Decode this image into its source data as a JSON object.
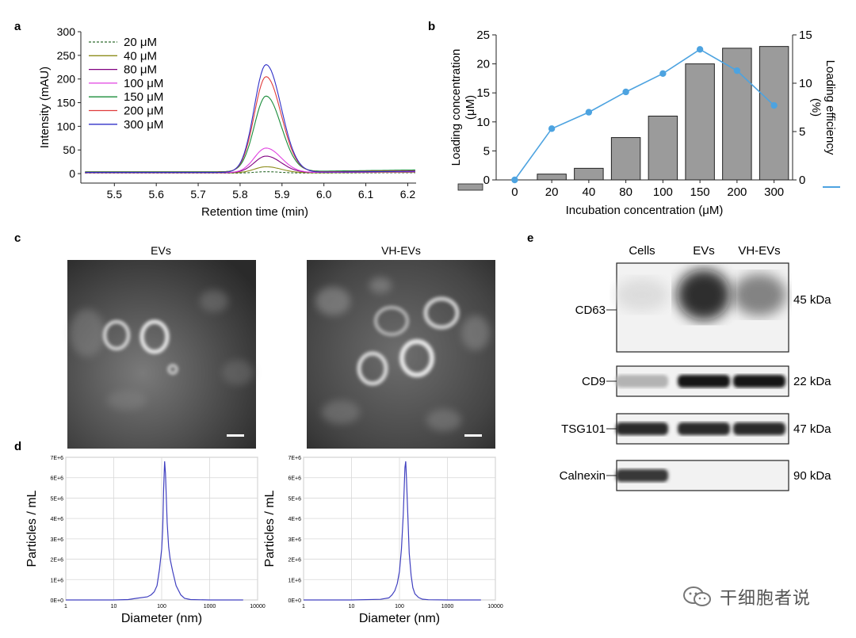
{
  "panels": {
    "a": {
      "letter": "a"
    },
    "b": {
      "letter": "b"
    },
    "c": {
      "letter": "c",
      "labels": [
        "EVs",
        "VH-EVs"
      ]
    },
    "d": {
      "letter": "d"
    },
    "e": {
      "letter": "e"
    }
  },
  "watermark": {
    "text": "干细胞者说",
    "icon": "wechat-icon"
  },
  "chart_data": [
    {
      "panel": "a",
      "type": "line",
      "xlabel": "Retention time (min)",
      "ylabel": "Intensity (mAU)",
      "xlim": [
        5.42,
        6.22
      ],
      "ylim": [
        -20,
        300
      ],
      "xticks": [
        "5.5",
        "5.6",
        "5.7",
        "5.8",
        "5.9",
        "6.0",
        "6.1",
        "6.2"
      ],
      "yticks": [
        "0",
        "50",
        "100",
        "150",
        "200",
        "250",
        "300"
      ],
      "legend_position": "top-left",
      "series": [
        {
          "name": "20 μM",
          "color": "#2e6b2e",
          "dashed": true,
          "peak": 3,
          "baseline": 1.0
        },
        {
          "name": "40 μM",
          "color": "#8c8c1a",
          "dashed": false,
          "peak": 13,
          "baseline": 1.5
        },
        {
          "name": "80 μM",
          "color": "#800080",
          "dashed": false,
          "peak": 35,
          "baseline": 2.0
        },
        {
          "name": "100 μM",
          "color": "#e040e0",
          "dashed": false,
          "peak": 52,
          "baseline": 2.0
        },
        {
          "name": "150 μM",
          "color": "#1a8c3a",
          "dashed": false,
          "peak": 160,
          "baseline": 4.0
        },
        {
          "name": "200 μM",
          "color": "#e03c3c",
          "dashed": false,
          "peak": 202,
          "baseline": 3.0
        },
        {
          "name": "300 μM",
          "color": "#3030c8",
          "dashed": false,
          "peak": 228,
          "baseline": 2.5
        }
      ],
      "peak_x": 5.862
    },
    {
      "panel": "b",
      "type": "bar",
      "xlabel": "Incubation concentration (μM)",
      "ylabel": "Loading concentration\n(μM)",
      "y2label": "Loading efficiency\n(%)",
      "categories": [
        "0",
        "20",
        "40",
        "80",
        "100",
        "150",
        "200",
        "300"
      ],
      "ylim": [
        0,
        25
      ],
      "y2lim": [
        0,
        15
      ],
      "yticks": [
        "0",
        "5",
        "10",
        "15",
        "20",
        "25"
      ],
      "y2ticks": [
        "0",
        "5",
        "10",
        "15"
      ],
      "series": [
        {
          "kind": "bar",
          "color": "#9b9b9b",
          "values": [
            0,
            1.0,
            2.0,
            7.3,
            11.0,
            20.0,
            22.7,
            23.0
          ]
        },
        {
          "kind": "line",
          "axis": "right",
          "color": "#4da3e0",
          "values": [
            0,
            5.3,
            7.0,
            9.1,
            11.0,
            13.5,
            11.3,
            7.7
          ]
        }
      ]
    },
    {
      "panel": "d",
      "type": "line",
      "title": "",
      "xlabel": "Diameter (nm)",
      "ylabel": "Particles / mL",
      "xscale": "log",
      "xlim": [
        1,
        10000
      ],
      "ylim": [
        0,
        7000000
      ],
      "xticks": [
        "1",
        "10",
        "100",
        "1000",
        "10000"
      ],
      "yticks": [
        "0E+0",
        "1E+6",
        "2E+6",
        "3E+6",
        "4E+6",
        "5E+6",
        "6E+6",
        "7E+6"
      ],
      "series": [
        {
          "name": "",
          "color": "#4040c0",
          "x": [
            1,
            5,
            10,
            20,
            30,
            50,
            60,
            70,
            80,
            90,
            100,
            105,
            110,
            115,
            120,
            130,
            140,
            150,
            170,
            200,
            250,
            300,
            400,
            1000,
            5000
          ],
          "y": [
            0,
            0,
            0,
            20000,
            80000,
            150000,
            250000,
            400000,
            700000,
            1500000,
            2500000,
            3500000,
            5500000,
            6800000,
            6200000,
            3800000,
            2600000,
            2000000,
            1400000,
            700000,
            250000,
            80000,
            20000,
            0,
            0
          ]
        }
      ]
    },
    {
      "panel": "d2",
      "type": "line",
      "title": "",
      "xlabel": "Diameter (nm)",
      "ylabel": "Particles / mL",
      "xscale": "log",
      "xlim": [
        1,
        10000
      ],
      "ylim": [
        0,
        7000000
      ],
      "xticks": [
        "1",
        "10",
        "100",
        "1000",
        "10000"
      ],
      "yticks": [
        "0E+0",
        "1E+6",
        "2E+6",
        "3E+6",
        "4E+6",
        "5E+6",
        "6E+6",
        "7E+6"
      ],
      "series": [
        {
          "name": "",
          "color": "#4040c0",
          "x": [
            1,
            10,
            40,
            60,
            70,
            80,
            90,
            100,
            110,
            120,
            130,
            135,
            140,
            150,
            160,
            175,
            190,
            210,
            250,
            300,
            400,
            1000,
            5000
          ],
          "y": [
            0,
            0,
            30000,
            100000,
            250000,
            450000,
            800000,
            1400000,
            2500000,
            4200000,
            6500000,
            6800000,
            6000000,
            4000000,
            2300000,
            1200000,
            600000,
            300000,
            120000,
            40000,
            10000,
            0,
            0
          ]
        }
      ]
    }
  ],
  "blot": {
    "columns": [
      "Cells",
      "EVs",
      "VH-EVs"
    ],
    "rows": [
      {
        "marker": "CD63",
        "size": "45 kDa",
        "levels": [
          0.08,
          1.0,
          0.55
        ]
      },
      {
        "marker": "CD9",
        "size": "22 kDa",
        "levels": [
          0.25,
          0.95,
          0.95
        ]
      },
      {
        "marker": "TSG101",
        "size": "47 kDa",
        "levels": [
          0.85,
          0.85,
          0.85
        ]
      },
      {
        "marker": "Calnexin",
        "size": "90 kDa",
        "levels": [
          0.8,
          0.0,
          0.0
        ]
      }
    ]
  }
}
